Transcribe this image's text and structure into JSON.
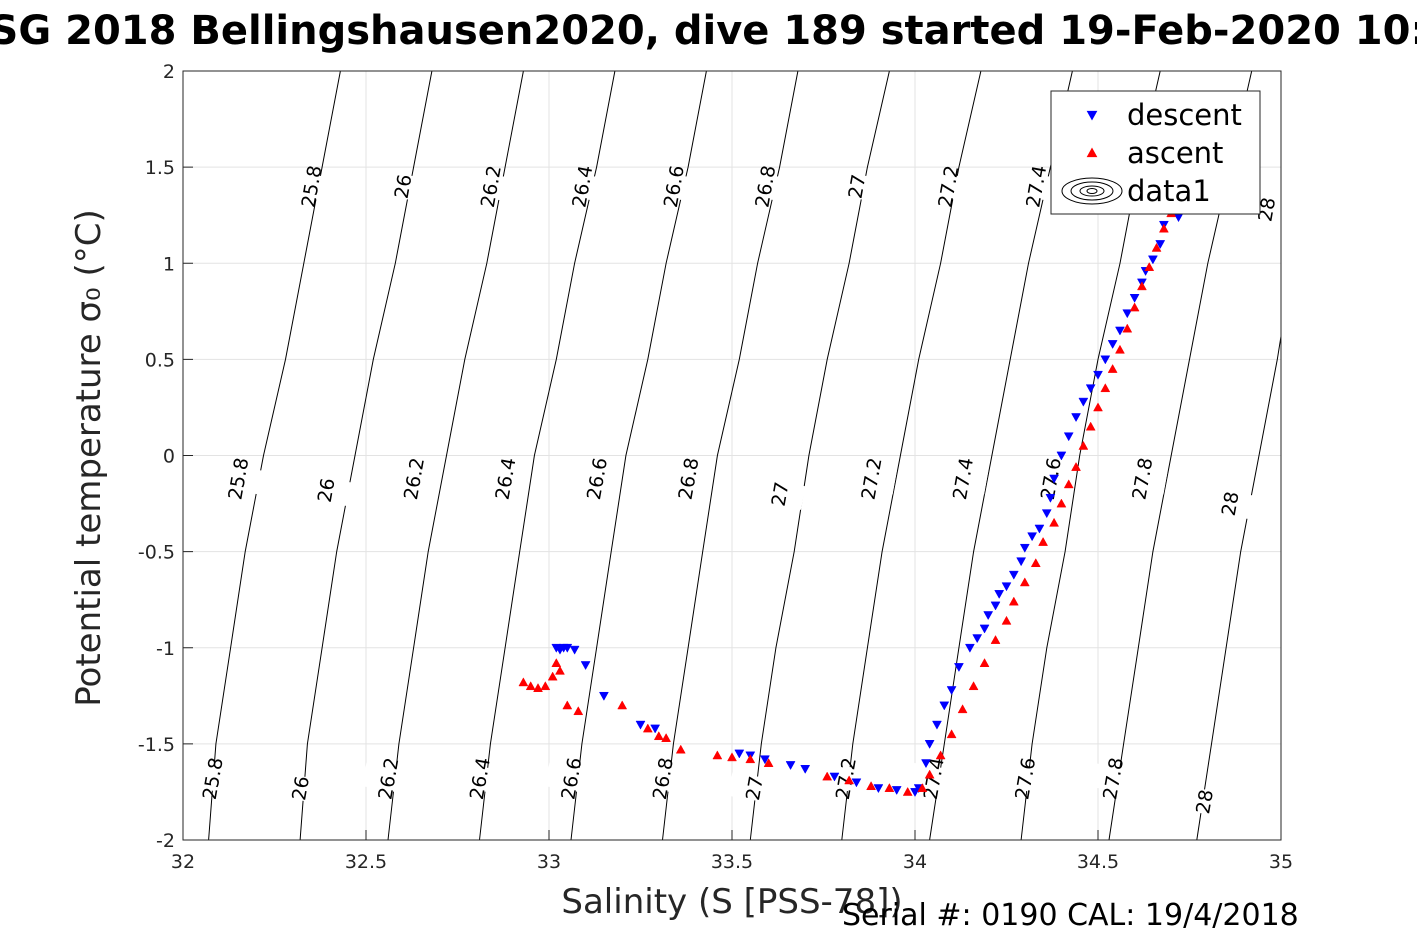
{
  "chart_data": {
    "type": "scatter",
    "title": "SG 2018 Bellingshausen2020, dive 189 started 19-Feb-2020 10:",
    "xlabel": "Salinity (S [PSS-78])",
    "ylabel": "Potential temperature σ₀ (°C)",
    "xlim": [
      32,
      35
    ],
    "ylim": [
      -2,
      2
    ],
    "xticks": [
      "32",
      "32.5",
      "33",
      "33.5",
      "34",
      "34.5",
      "35"
    ],
    "yticks": [
      "-2",
      "-1.5",
      "-1",
      "-0.5",
      "0",
      "0.5",
      "1",
      "1.5",
      "2"
    ],
    "grid": true,
    "legend": {
      "placement": "top-right",
      "entries": [
        "descent",
        "ascent",
        "data1"
      ]
    },
    "contours": {
      "label": "data1",
      "levels": [
        "25.8",
        "26",
        "26.2",
        "26.4",
        "26.6",
        "26.8",
        "27",
        "27.2",
        "27.4",
        "27.6",
        "27.8",
        "28"
      ],
      "lines": [
        {
          "level": "25.8",
          "points": [
            [
              32.07,
              -2
            ],
            [
              32.09,
              -1.5
            ],
            [
              32.13,
              -1
            ],
            [
              32.17,
              -0.5
            ],
            [
              32.22,
              0
            ],
            [
              32.28,
              0.5
            ],
            [
              32.33,
              1
            ],
            [
              32.38,
              1.5
            ],
            [
              32.43,
              2
            ]
          ]
        },
        {
          "level": "26",
          "points": [
            [
              32.32,
              -2
            ],
            [
              32.34,
              -1.5
            ],
            [
              32.38,
              -1
            ],
            [
              32.42,
              -0.5
            ],
            [
              32.47,
              0
            ],
            [
              32.52,
              0.5
            ],
            [
              32.58,
              1
            ],
            [
              32.63,
              1.5
            ],
            [
              32.68,
              2
            ]
          ]
        },
        {
          "level": "26.2",
          "points": [
            [
              32.56,
              -2
            ],
            [
              32.59,
              -1.5
            ],
            [
              32.63,
              -1
            ],
            [
              32.67,
              -0.5
            ],
            [
              32.72,
              0
            ],
            [
              32.77,
              0.5
            ],
            [
              32.83,
              1
            ],
            [
              32.88,
              1.5
            ],
            [
              32.93,
              2
            ]
          ]
        },
        {
          "level": "26.4",
          "points": [
            [
              32.81,
              -2
            ],
            [
              32.84,
              -1.5
            ],
            [
              32.88,
              -1
            ],
            [
              32.92,
              -0.5
            ],
            [
              32.96,
              0
            ],
            [
              33.02,
              0.5
            ],
            [
              33.07,
              1
            ],
            [
              33.13,
              1.5
            ],
            [
              33.18,
              2
            ]
          ]
        },
        {
          "level": "26.6",
          "points": [
            [
              33.06,
              -2
            ],
            [
              33.09,
              -1.5
            ],
            [
              33.13,
              -1
            ],
            [
              33.17,
              -0.5
            ],
            [
              33.21,
              0
            ],
            [
              33.27,
              0.5
            ],
            [
              33.32,
              1
            ],
            [
              33.38,
              1.5
            ],
            [
              33.43,
              2
            ]
          ]
        },
        {
          "level": "26.8",
          "points": [
            [
              33.31,
              -2
            ],
            [
              33.34,
              -1.5
            ],
            [
              33.38,
              -1
            ],
            [
              33.42,
              -0.5
            ],
            [
              33.46,
              0
            ],
            [
              33.52,
              0.5
            ],
            [
              33.57,
              1
            ],
            [
              33.63,
              1.5
            ],
            [
              33.68,
              2
            ]
          ]
        },
        {
          "level": "27",
          "points": [
            [
              33.55,
              -2
            ],
            [
              33.58,
              -1.5
            ],
            [
              33.62,
              -1
            ],
            [
              33.67,
              -0.5
            ],
            [
              33.71,
              0
            ],
            [
              33.76,
              0.5
            ],
            [
              33.82,
              1
            ],
            [
              33.87,
              1.5
            ],
            [
              33.93,
              2
            ]
          ]
        },
        {
          "level": "27.2",
          "points": [
            [
              33.8,
              -2
            ],
            [
              33.83,
              -1.5
            ],
            [
              33.87,
              -1
            ],
            [
              33.91,
              -0.5
            ],
            [
              33.96,
              0
            ],
            [
              34.01,
              0.5
            ],
            [
              34.07,
              1
            ],
            [
              34.12,
              1.5
            ],
            [
              34.18,
              2
            ]
          ]
        },
        {
          "level": "27.4",
          "points": [
            [
              34.04,
              -2
            ],
            [
              34.08,
              -1.5
            ],
            [
              34.12,
              -1
            ],
            [
              34.16,
              -0.5
            ],
            [
              34.21,
              0
            ],
            [
              34.26,
              0.5
            ],
            [
              34.31,
              1
            ],
            [
              34.37,
              1.5
            ],
            [
              34.43,
              2
            ]
          ]
        },
        {
          "level": "27.6",
          "points": [
            [
              34.29,
              -2
            ],
            [
              34.32,
              -1.5
            ],
            [
              34.36,
              -1
            ],
            [
              34.41,
              -0.5
            ],
            [
              34.45,
              0
            ],
            [
              34.5,
              0.5
            ],
            [
              34.56,
              1
            ],
            [
              34.61,
              1.5
            ],
            [
              34.67,
              2
            ]
          ]
        },
        {
          "level": "27.8",
          "points": [
            [
              34.53,
              -2
            ],
            [
              34.57,
              -1.5
            ],
            [
              34.61,
              -1
            ],
            [
              34.65,
              -0.5
            ],
            [
              34.7,
              0
            ],
            [
              34.75,
              0.5
            ],
            [
              34.8,
              1
            ],
            [
              34.86,
              1.5
            ],
            [
              34.92,
              2
            ]
          ]
        },
        {
          "level": "28",
          "points": [
            [
              34.77,
              -2
            ],
            [
              34.81,
              -1.5
            ],
            [
              34.85,
              -1
            ],
            [
              34.89,
              -0.5
            ],
            [
              34.94,
              0
            ],
            [
              34.99,
              0.5
            ],
            [
              35.0,
              0.62
            ]
          ]
        }
      ],
      "label_positions": [
        {
          "level": "25.8",
          "pos": [
            [
              32.35,
              1.4
            ],
            [
              32.15,
              -0.12
            ],
            [
              32.08,
              -1.68
            ]
          ]
        },
        {
          "level": "26",
          "pos": [
            [
              32.6,
              1.4
            ],
            [
              32.39,
              -0.18
            ],
            [
              32.32,
              -1.73
            ]
          ]
        },
        {
          "level": "26.2",
          "pos": [
            [
              32.84,
              1.4
            ],
            [
              32.63,
              -0.12
            ],
            [
              32.56,
              -1.68
            ]
          ]
        },
        {
          "level": "26.4",
          "pos": [
            [
              33.09,
              1.4
            ],
            [
              32.88,
              -0.12
            ],
            [
              32.81,
              -1.68
            ]
          ]
        },
        {
          "level": "26.6",
          "pos": [
            [
              33.34,
              1.4
            ],
            [
              33.13,
              -0.12
            ],
            [
              33.06,
              -1.68
            ]
          ]
        },
        {
          "level": "26.8",
          "pos": [
            [
              33.59,
              1.4
            ],
            [
              33.38,
              -0.12
            ],
            [
              33.31,
              -1.68
            ]
          ]
        },
        {
          "level": "27",
          "pos": [
            [
              33.84,
              1.4
            ],
            [
              33.63,
              -0.2
            ],
            [
              33.56,
              -1.73
            ]
          ]
        },
        {
          "level": "27.2",
          "pos": [
            [
              34.09,
              1.4
            ],
            [
              33.88,
              -0.12
            ],
            [
              33.81,
              -1.68
            ]
          ]
        },
        {
          "level": "27.4",
          "pos": [
            [
              34.33,
              1.4
            ],
            [
              34.13,
              -0.12
            ],
            [
              34.05,
              -1.68
            ]
          ]
        },
        {
          "level": "27.6",
          "pos": [
            [
              34.37,
              -0.12
            ],
            [
              34.3,
              -1.68
            ]
          ]
        },
        {
          "level": "27.8",
          "pos": [
            [
              34.62,
              -0.12
            ],
            [
              34.54,
              -1.68
            ]
          ]
        },
        {
          "level": "28",
          "pos": [
            [
              34.96,
              1.28
            ],
            [
              34.86,
              -0.25
            ],
            [
              34.79,
              -1.8
            ]
          ]
        }
      ]
    },
    "series": [
      {
        "name": "descent",
        "marker": "triangle-down",
        "color": "#0000ff",
        "points": [
          [
            33.02,
            -1.0
          ],
          [
            33.04,
            -1.0
          ],
          [
            33.05,
            -1.0
          ],
          [
            33.03,
            -1.01
          ],
          [
            33.07,
            -1.01
          ],
          [
            33.1,
            -1.09
          ],
          [
            33.15,
            -1.25
          ],
          [
            33.25,
            -1.4
          ],
          [
            33.29,
            -1.42
          ],
          [
            33.52,
            -1.55
          ],
          [
            33.55,
            -1.56
          ],
          [
            33.59,
            -1.58
          ],
          [
            33.66,
            -1.61
          ],
          [
            33.7,
            -1.63
          ],
          [
            33.78,
            -1.67
          ],
          [
            33.84,
            -1.7
          ],
          [
            33.9,
            -1.73
          ],
          [
            33.95,
            -1.74
          ],
          [
            34.0,
            -1.75
          ],
          [
            34.01,
            -1.73
          ],
          [
            34.03,
            -1.6
          ],
          [
            34.04,
            -1.5
          ],
          [
            34.06,
            -1.4
          ],
          [
            34.08,
            -1.3
          ],
          [
            34.1,
            -1.22
          ],
          [
            34.12,
            -1.1
          ],
          [
            34.15,
            -1.0
          ],
          [
            34.17,
            -0.95
          ],
          [
            34.19,
            -0.9
          ],
          [
            34.2,
            -0.83
          ],
          [
            34.22,
            -0.78
          ],
          [
            34.23,
            -0.72
          ],
          [
            34.25,
            -0.68
          ],
          [
            34.27,
            -0.62
          ],
          [
            34.29,
            -0.55
          ],
          [
            34.3,
            -0.48
          ],
          [
            34.32,
            -0.42
          ],
          [
            34.34,
            -0.38
          ],
          [
            34.36,
            -0.3
          ],
          [
            34.37,
            -0.22
          ],
          [
            34.38,
            -0.12
          ],
          [
            34.4,
            0.0
          ],
          [
            34.42,
            0.1
          ],
          [
            34.44,
            0.2
          ],
          [
            34.46,
            0.28
          ],
          [
            34.48,
            0.35
          ],
          [
            34.5,
            0.42
          ],
          [
            34.52,
            0.5
          ],
          [
            34.54,
            0.58
          ],
          [
            34.56,
            0.65
          ],
          [
            34.58,
            0.74
          ],
          [
            34.6,
            0.82
          ],
          [
            34.62,
            0.9
          ],
          [
            34.63,
            0.96
          ],
          [
            34.65,
            1.02
          ],
          [
            34.67,
            1.1
          ],
          [
            34.68,
            1.2
          ],
          [
            34.7,
            1.28
          ],
          [
            34.72,
            1.24
          ],
          [
            34.69,
            1.3
          ]
        ]
      },
      {
        "name": "ascent",
        "marker": "triangle-up",
        "color": "#ff0000",
        "points": [
          [
            32.93,
            -1.18
          ],
          [
            32.95,
            -1.2
          ],
          [
            32.97,
            -1.21
          ],
          [
            32.99,
            -1.2
          ],
          [
            33.01,
            -1.15
          ],
          [
            33.02,
            -1.08
          ],
          [
            33.03,
            -1.12
          ],
          [
            33.05,
            -1.3
          ],
          [
            33.08,
            -1.33
          ],
          [
            33.2,
            -1.3
          ],
          [
            33.27,
            -1.42
          ],
          [
            33.3,
            -1.46
          ],
          [
            33.32,
            -1.47
          ],
          [
            33.36,
            -1.53
          ],
          [
            33.46,
            -1.56
          ],
          [
            33.5,
            -1.57
          ],
          [
            33.55,
            -1.58
          ],
          [
            33.6,
            -1.6
          ],
          [
            33.76,
            -1.67
          ],
          [
            33.82,
            -1.69
          ],
          [
            33.88,
            -1.72
          ],
          [
            33.93,
            -1.73
          ],
          [
            33.98,
            -1.75
          ],
          [
            34.02,
            -1.73
          ],
          [
            34.04,
            -1.66
          ],
          [
            34.07,
            -1.56
          ],
          [
            34.1,
            -1.45
          ],
          [
            34.13,
            -1.32
          ],
          [
            34.16,
            -1.2
          ],
          [
            34.19,
            -1.08
          ],
          [
            34.22,
            -0.96
          ],
          [
            34.25,
            -0.86
          ],
          [
            34.27,
            -0.76
          ],
          [
            34.3,
            -0.66
          ],
          [
            34.33,
            -0.56
          ],
          [
            34.35,
            -0.45
          ],
          [
            34.38,
            -0.35
          ],
          [
            34.4,
            -0.25
          ],
          [
            34.42,
            -0.15
          ],
          [
            34.44,
            -0.06
          ],
          [
            34.46,
            0.05
          ],
          [
            34.48,
            0.15
          ],
          [
            34.5,
            0.25
          ],
          [
            34.52,
            0.35
          ],
          [
            34.54,
            0.45
          ],
          [
            34.56,
            0.55
          ],
          [
            34.58,
            0.66
          ],
          [
            34.6,
            0.77
          ],
          [
            34.62,
            0.88
          ],
          [
            34.64,
            0.98
          ],
          [
            34.66,
            1.08
          ],
          [
            34.68,
            1.18
          ],
          [
            34.7,
            1.26
          ]
        ]
      }
    ]
  },
  "footer": "Serial #: 0190  CAL: 19/4/2018"
}
